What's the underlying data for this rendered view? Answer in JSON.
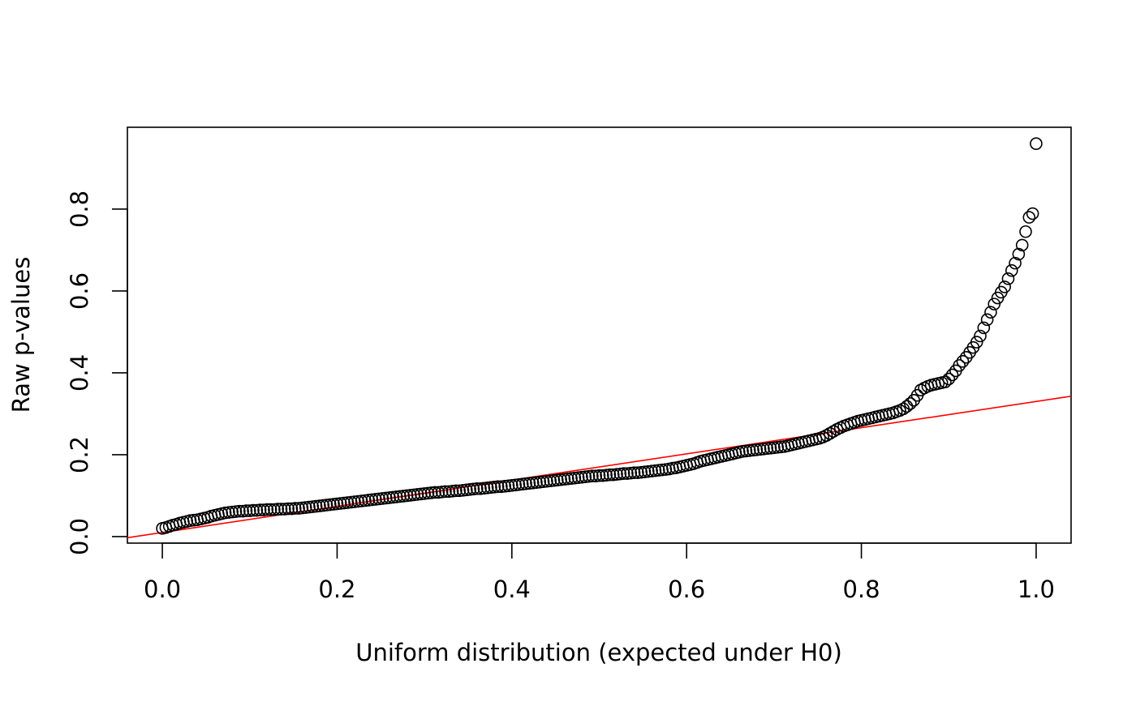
{
  "chart_data": {
    "type": "scatter",
    "title": "",
    "xlabel": "Uniform distribution (expected under H0)",
    "ylabel": "Raw p-values",
    "xlim": [
      -0.04,
      1.04
    ],
    "ylim": [
      -0.016,
      1.0
    ],
    "x_ticks": [
      0.0,
      0.2,
      0.4,
      0.6,
      0.8,
      1.0
    ],
    "x_tick_labels": [
      "0.0",
      "0.2",
      "0.4",
      "0.6",
      "0.8",
      "1.0"
    ],
    "y_ticks": [
      0.0,
      0.2,
      0.4,
      0.6,
      0.8
    ],
    "y_tick_labels": [
      "0.0",
      "0.2",
      "0.4",
      "0.6",
      "0.8"
    ],
    "grid": false,
    "reference_line": {
      "intercept": 0.01,
      "slope": 0.32,
      "color": "#ff0000"
    },
    "point_color": "#000000",
    "x": [
      0.0,
      0.004,
      0.008,
      0.012,
      0.016,
      0.02,
      0.024,
      0.028,
      0.032,
      0.036,
      0.04,
      0.044,
      0.048,
      0.052,
      0.056,
      0.06,
      0.064,
      0.068,
      0.072,
      0.076,
      0.08,
      0.084,
      0.088,
      0.092,
      0.096,
      0.1,
      0.104,
      0.108,
      0.112,
      0.116,
      0.12,
      0.124,
      0.128,
      0.132,
      0.136,
      0.14,
      0.144,
      0.148,
      0.152,
      0.156,
      0.16,
      0.164,
      0.168,
      0.172,
      0.176,
      0.18,
      0.184,
      0.188,
      0.192,
      0.196,
      0.2,
      0.204,
      0.208,
      0.212,
      0.216,
      0.22,
      0.224,
      0.228,
      0.232,
      0.236,
      0.24,
      0.244,
      0.248,
      0.252,
      0.256,
      0.26,
      0.264,
      0.268,
      0.272,
      0.276,
      0.28,
      0.284,
      0.288,
      0.292,
      0.296,
      0.3,
      0.304,
      0.308,
      0.312,
      0.316,
      0.32,
      0.324,
      0.328,
      0.332,
      0.336,
      0.34,
      0.344,
      0.348,
      0.352,
      0.356,
      0.36,
      0.364,
      0.368,
      0.372,
      0.376,
      0.38,
      0.384,
      0.388,
      0.392,
      0.396,
      0.4,
      0.404,
      0.408,
      0.412,
      0.416,
      0.42,
      0.424,
      0.428,
      0.432,
      0.436,
      0.44,
      0.444,
      0.448,
      0.452,
      0.456,
      0.46,
      0.464,
      0.468,
      0.472,
      0.476,
      0.48,
      0.484,
      0.488,
      0.492,
      0.496,
      0.5,
      0.504,
      0.508,
      0.512,
      0.516,
      0.52,
      0.524,
      0.528,
      0.532,
      0.536,
      0.54,
      0.544,
      0.548,
      0.552,
      0.556,
      0.56,
      0.564,
      0.568,
      0.572,
      0.576,
      0.58,
      0.584,
      0.588,
      0.592,
      0.596,
      0.6,
      0.604,
      0.608,
      0.612,
      0.616,
      0.62,
      0.624,
      0.628,
      0.632,
      0.636,
      0.64,
      0.644,
      0.648,
      0.652,
      0.656,
      0.66,
      0.664,
      0.668,
      0.672,
      0.676,
      0.68,
      0.684,
      0.688,
      0.692,
      0.696,
      0.7,
      0.704,
      0.708,
      0.712,
      0.716,
      0.72,
      0.724,
      0.728,
      0.732,
      0.736,
      0.74,
      0.744,
      0.748,
      0.752,
      0.756,
      0.76,
      0.764,
      0.768,
      0.772,
      0.776,
      0.78,
      0.784,
      0.788,
      0.792,
      0.796,
      0.8,
      0.804,
      0.808,
      0.812,
      0.816,
      0.82,
      0.824,
      0.828,
      0.832,
      0.836,
      0.84,
      0.844,
      0.848,
      0.852,
      0.856,
      0.86,
      0.864,
      0.868,
      0.872,
      0.876,
      0.88,
      0.884,
      0.888,
      0.892,
      0.896,
      0.9,
      0.904,
      0.908,
      0.912,
      0.916,
      0.92,
      0.924,
      0.928,
      0.932,
      0.936,
      0.94,
      0.944,
      0.948,
      0.952,
      0.956,
      0.96,
      0.964,
      0.968,
      0.972,
      0.976,
      0.98,
      0.984,
      0.988,
      0.992,
      0.996,
      1.0
    ],
    "y": [
      0.02,
      0.022,
      0.025,
      0.028,
      0.03,
      0.033,
      0.035,
      0.037,
      0.039,
      0.04,
      0.041,
      0.043,
      0.045,
      0.047,
      0.05,
      0.052,
      0.054,
      0.056,
      0.058,
      0.059,
      0.06,
      0.061,
      0.062,
      0.062,
      0.063,
      0.063,
      0.064,
      0.064,
      0.065,
      0.065,
      0.066,
      0.066,
      0.066,
      0.067,
      0.067,
      0.067,
      0.068,
      0.068,
      0.069,
      0.069,
      0.07,
      0.071,
      0.072,
      0.073,
      0.074,
      0.075,
      0.076,
      0.077,
      0.078,
      0.079,
      0.08,
      0.081,
      0.082,
      0.083,
      0.084,
      0.085,
      0.086,
      0.087,
      0.088,
      0.089,
      0.09,
      0.091,
      0.092,
      0.093,
      0.094,
      0.095,
      0.096,
      0.097,
      0.098,
      0.099,
      0.1,
      0.101,
      0.102,
      0.103,
      0.104,
      0.105,
      0.106,
      0.107,
      0.108,
      0.108,
      0.109,
      0.11,
      0.11,
      0.111,
      0.112,
      0.112,
      0.113,
      0.114,
      0.115,
      0.116,
      0.117,
      0.117,
      0.118,
      0.119,
      0.12,
      0.121,
      0.122,
      0.122,
      0.123,
      0.124,
      0.125,
      0.126,
      0.127,
      0.128,
      0.129,
      0.13,
      0.131,
      0.132,
      0.133,
      0.134,
      0.135,
      0.136,
      0.137,
      0.138,
      0.139,
      0.14,
      0.141,
      0.142,
      0.143,
      0.144,
      0.145,
      0.146,
      0.147,
      0.148,
      0.148,
      0.149,
      0.149,
      0.15,
      0.151,
      0.151,
      0.152,
      0.153,
      0.154,
      0.154,
      0.155,
      0.156,
      0.156,
      0.157,
      0.158,
      0.159,
      0.16,
      0.161,
      0.162,
      0.163,
      0.164,
      0.165,
      0.167,
      0.168,
      0.17,
      0.172,
      0.174,
      0.176,
      0.178,
      0.181,
      0.184,
      0.186,
      0.188,
      0.19,
      0.192,
      0.194,
      0.196,
      0.198,
      0.2,
      0.202,
      0.204,
      0.206,
      0.208,
      0.209,
      0.21,
      0.211,
      0.212,
      0.213,
      0.214,
      0.215,
      0.216,
      0.217,
      0.218,
      0.219,
      0.22,
      0.222,
      0.224,
      0.226,
      0.228,
      0.23,
      0.232,
      0.234,
      0.236,
      0.238,
      0.24,
      0.243,
      0.247,
      0.252,
      0.257,
      0.262,
      0.266,
      0.27,
      0.273,
      0.276,
      0.279,
      0.282,
      0.284,
      0.286,
      0.288,
      0.29,
      0.292,
      0.294,
      0.296,
      0.298,
      0.3,
      0.302,
      0.305,
      0.308,
      0.312,
      0.318,
      0.325,
      0.333,
      0.345,
      0.358,
      0.363,
      0.367,
      0.37,
      0.372,
      0.374,
      0.376,
      0.378,
      0.385,
      0.395,
      0.405,
      0.418,
      0.428,
      0.438,
      0.45,
      0.462,
      0.475,
      0.49,
      0.51,
      0.53,
      0.548,
      0.568,
      0.583,
      0.597,
      0.61,
      0.63,
      0.65,
      0.668,
      0.69,
      0.712,
      0.745,
      0.78,
      0.789,
      0.96
    ]
  }
}
